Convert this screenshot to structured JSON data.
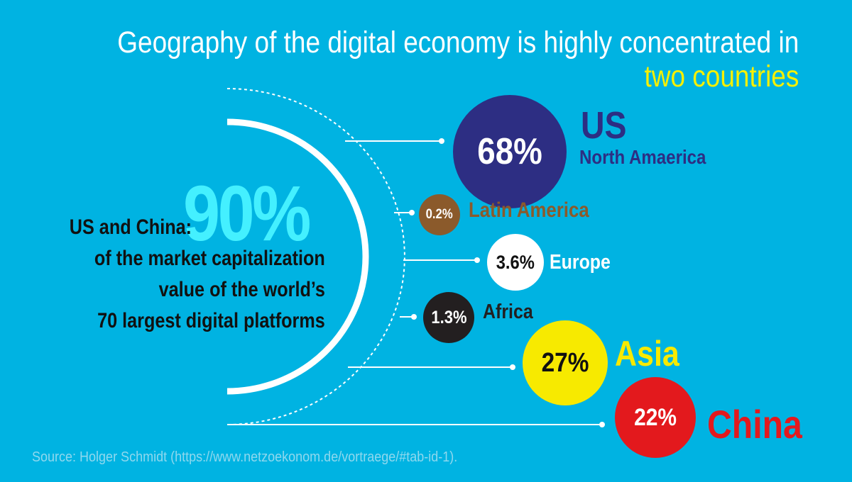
{
  "title": {
    "line1": "Geography of the digital economy is highly concentrated in",
    "line2": "two countries"
  },
  "highlight": {
    "value": "90%",
    "lead": "US and China:",
    "line2": "of the market capitalization",
    "line3": "value of the world’s",
    "line4": "70 largest digital platforms"
  },
  "regions": [
    {
      "value": "68%",
      "name": "US",
      "subname": "North Amaerica",
      "color": "#2d2e83",
      "text_color": "#ffffff",
      "label_color": "#2d2e83"
    },
    {
      "value": "0.2%",
      "name": "Latin America",
      "color": "#8b5a2b",
      "text_color": "#ffffff",
      "label_color": "#8b5a2b"
    },
    {
      "value": "3.6%",
      "name": "Europe",
      "color": "#ffffff",
      "text_color": "#111111",
      "label_color": "#ffffff"
    },
    {
      "value": "1.3%",
      "name": "Africa",
      "color": "#231f20",
      "text_color": "#ffffff",
      "label_color": "#231f20"
    },
    {
      "value": "27%",
      "name": "Asia",
      "color": "#f7ea00",
      "text_color": "#111111",
      "label_color": "#f7ea00"
    },
    {
      "value": "22%",
      "name": "China",
      "color": "#e3191d",
      "text_color": "#ffffff",
      "label_color": "#e3191d"
    }
  ],
  "source": "Source: Holger Schmidt (https://www.netzoekonom.de/vortraege/#tab-id-1)."
}
